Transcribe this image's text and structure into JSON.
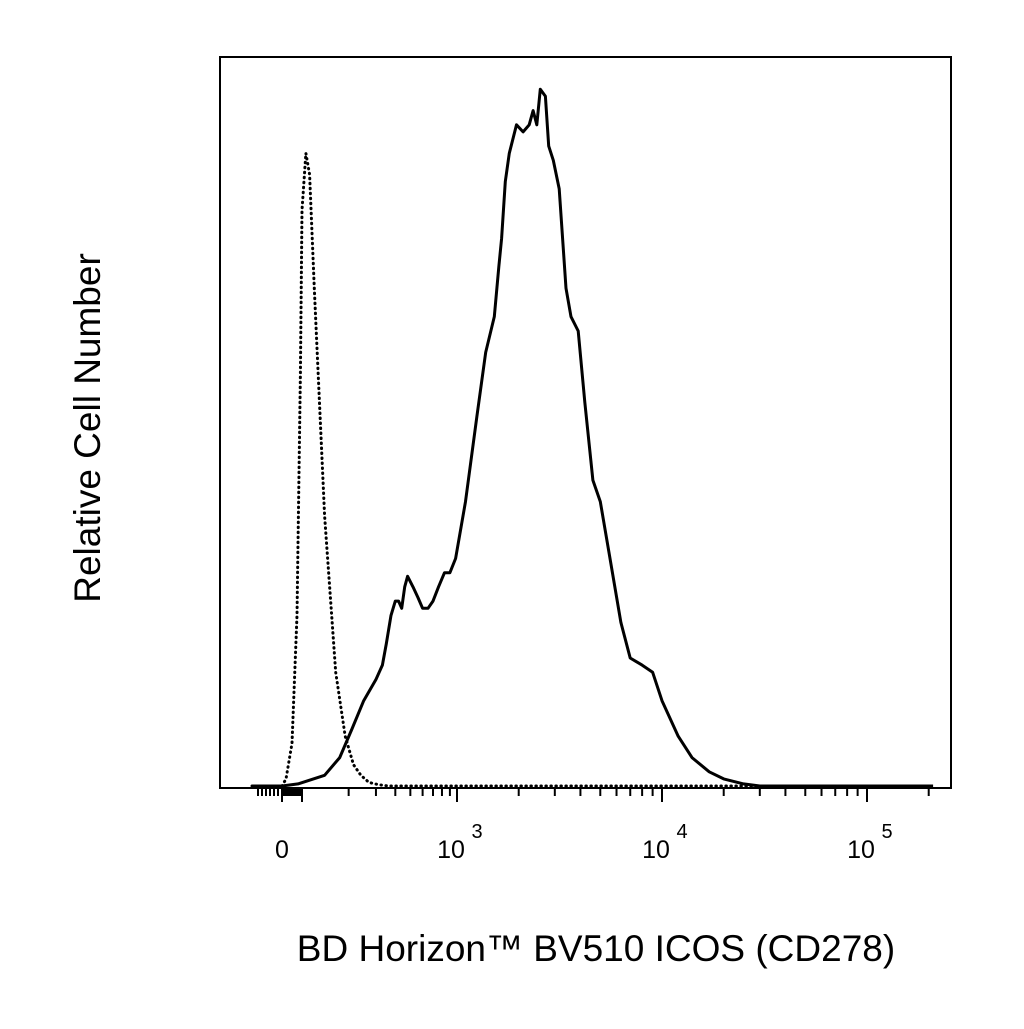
{
  "chart_data": {
    "type": "line",
    "title": "",
    "xlabel": "BD Horizon™ BV510 ICOS (CD278)",
    "ylabel": "Relative Cell Number",
    "x_scale": "biexponential",
    "xlim": [
      -150,
      210000
    ],
    "ylim": [
      0,
      100
    ],
    "grid": false,
    "legend": "none",
    "x_ticks": [
      {
        "value": 0,
        "base": "0",
        "exponent": ""
      },
      {
        "value": 1000,
        "base": "10",
        "exponent": "3"
      },
      {
        "value": 10000,
        "base": "10",
        "exponent": "4"
      },
      {
        "value": 100000,
        "base": "10",
        "exponent": "5"
      }
    ],
    "colors": {
      "line": "#000000",
      "frame": "#000000",
      "background": "#ffffff"
    },
    "series": [
      {
        "style": "dotted",
        "x": [
          -150,
          0,
          20,
          50,
          75,
          92,
          100,
          106,
          112,
          120,
          140,
          165,
          190,
          215,
          240,
          270,
          310,
          360,
          500,
          1000,
          10000,
          210000
        ],
        "y": [
          0,
          0,
          1,
          6,
          24,
          58,
          81,
          89,
          86,
          70,
          38,
          16,
          7,
          3,
          1.5,
          0.5,
          0.2,
          0,
          0,
          0,
          0,
          0
        ]
      },
      {
        "style": "solid",
        "x": [
          -150,
          0,
          80,
          140,
          175,
          210,
          250,
          300,
          330,
          350,
          375,
          400,
          420,
          440,
          460,
          480,
          520,
          560,
          600,
          650,
          700,
          760,
          830,
          900,
          980,
          1100,
          1250,
          1380,
          1520,
          1600,
          1650,
          1720,
          1800,
          1950,
          2100,
          2250,
          2350,
          2450,
          2550,
          2700,
          2800,
          2950,
          3150,
          3400,
          3600,
          3900,
          4200,
          4600,
          5000,
          5500,
          6300,
          7000,
          8000,
          9000,
          10000,
          12000,
          14000,
          17000,
          20000,
          25000,
          30000,
          34000,
          40000,
          60000,
          100000,
          210000
        ],
        "y": [
          0,
          0,
          0.3,
          1.5,
          4,
          8,
          12,
          15,
          17,
          20,
          24,
          26,
          26,
          25,
          28,
          29.5,
          28,
          26.5,
          25,
          25,
          26,
          28,
          30,
          30,
          32,
          40,
          52,
          61,
          66,
          73,
          77,
          85,
          89,
          93,
          92,
          93,
          95,
          93,
          98,
          97,
          90,
          88,
          84,
          70,
          66,
          64,
          54,
          43,
          40,
          33,
          23,
          18,
          17,
          16,
          12,
          7,
          4,
          2,
          1,
          0.3,
          0,
          0,
          0,
          0,
          0,
          0
        ]
      }
    ]
  }
}
